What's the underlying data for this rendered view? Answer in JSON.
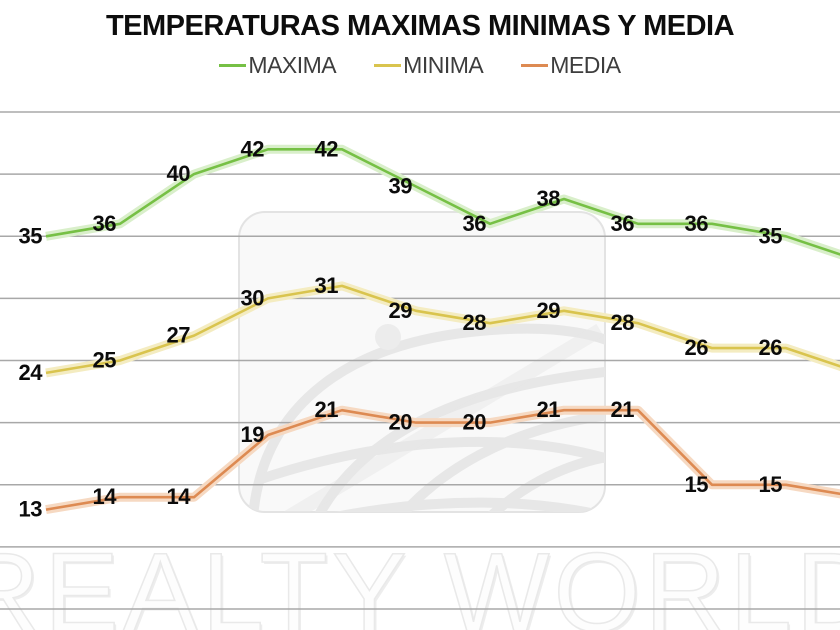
{
  "title": "TEMPERATURAS MAXIMAS MINIMAS Y MEDIA",
  "legend": {
    "items": [
      {
        "label": "MAXIMA",
        "color": "#76c045"
      },
      {
        "label": "MINIMA",
        "color": "#d9c44e"
      },
      {
        "label": "MEDIA",
        "color": "#dd8a52"
      }
    ],
    "position": "top"
  },
  "watermark": {
    "text": "REALTY WORLD"
  },
  "chart_data": {
    "type": "line",
    "title": "TEMPERATURAS MAXIMAS MINIMAS Y MEDIA",
    "x_axis_labels_visible": false,
    "ylim": [
      5,
      45
    ],
    "y_gridlines": [
      5,
      10,
      15,
      20,
      25,
      30,
      35,
      40,
      45
    ],
    "grid": true,
    "legend_position": "top",
    "data_labels": true,
    "series": [
      {
        "name": "MAXIMA",
        "color": "#76c045",
        "halo": "#d9efca",
        "values": [
          35,
          36,
          40,
          42,
          42,
          39,
          36,
          38,
          36,
          36,
          35
        ],
        "edge_value_at_crop": 33
      },
      {
        "name": "MINIMA",
        "color": "#d9c44e",
        "halo": "#f4ecc1",
        "values": [
          24,
          25,
          27,
          30,
          31,
          29,
          28,
          29,
          28,
          26,
          26
        ],
        "edge_value_at_crop": 24
      },
      {
        "name": "MEDIA",
        "color": "#dd8a52",
        "halo": "#f6d9c2",
        "values": [
          13,
          14,
          14,
          19,
          21,
          20,
          20,
          21,
          21,
          15,
          15
        ],
        "edge_value_at_crop": 14
      }
    ]
  }
}
